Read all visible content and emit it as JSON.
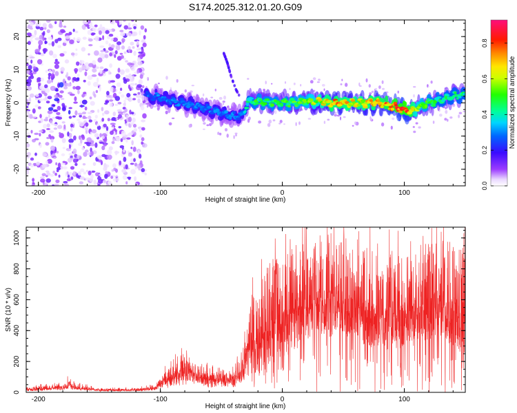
{
  "title": "S174.2025.312.01.20.G09",
  "colors": {
    "snr_line": "#ee2222",
    "frame": "#000000",
    "background": "#ffffff"
  },
  "chart_data": [
    {
      "type": "heatmap",
      "name": "spectrogram",
      "xlabel": "Height of straight line (km)",
      "ylabel": "Frequency (Hz)",
      "xlim": [
        -210,
        150
      ],
      "ylim": [
        -25,
        25
      ],
      "xticks": [
        -200,
        -100,
        0,
        100
      ],
      "xtick_labels": [
        "-200",
        "-100",
        "0",
        "100"
      ],
      "yticks": [
        -20,
        -10,
        0,
        10,
        20
      ],
      "ytick_labels": [
        "-20",
        "-10",
        "0",
        "10",
        "20"
      ],
      "colorbar": {
        "label": "Normalized spectral amplitude",
        "range": [
          0,
          0.93
        ],
        "ticks": [
          0.0,
          0.2,
          0.4,
          0.6,
          0.8
        ],
        "tick_labels": [
          "0.0",
          "0.2",
          "0.4",
          "0.6",
          "0.8"
        ],
        "colormap": "rainbow (violet-blue-cyan-green-yellow-red-magenta)"
      },
      "ridge": {
        "description": "dominant frequency ridge vs height",
        "x": [
          -112,
          -100,
          -90,
          -80,
          -70,
          -60,
          -50,
          -40,
          -32,
          -28,
          -20,
          0,
          20,
          40,
          60,
          80,
          90,
          100,
          105,
          110,
          120,
          130,
          140,
          150
        ],
        "y": [
          2.5,
          1.5,
          0.5,
          0,
          -1,
          -2,
          -3,
          -4,
          -3.5,
          0.5,
          0.2,
          0,
          0.5,
          0,
          0,
          0,
          -1,
          -2,
          -2.5,
          -1.5,
          0,
          1,
          2,
          2.5
        ],
        "amplitude": [
          0.3,
          0.3,
          0.3,
          0.3,
          0.3,
          0.3,
          0.3,
          0.3,
          0.3,
          0.45,
          0.5,
          0.5,
          0.55,
          0.75,
          0.7,
          0.75,
          0.8,
          0.85,
          0.8,
          0.6,
          0.5,
          0.45,
          0.45,
          0.45
        ]
      },
      "side_arc": {
        "description": "faint rising feature near -45 km",
        "x": [
          -48,
          -45,
          -42,
          -38,
          -35
        ],
        "y": [
          15,
          12,
          8,
          4,
          2
        ]
      },
      "noise_region": {
        "x_range": [
          -210,
          -112
        ],
        "description": "scattered noise across full frequency band"
      }
    },
    {
      "type": "line",
      "name": "snr",
      "xlabel": "Height of straight line (km)",
      "ylabel": "SNR (10 * v/v)",
      "xlim": [
        -210,
        150
      ],
      "ylim": [
        0,
        1070
      ],
      "xticks": [
        -200,
        -100,
        0,
        100
      ],
      "xtick_labels": [
        "-200",
        "-100",
        "0",
        "100"
      ],
      "yticks": [
        0,
        200,
        400,
        600,
        800,
        1000
      ],
      "ytick_labels": [
        "0",
        "200",
        "400",
        "600",
        "800",
        "1000"
      ],
      "series": [
        {
          "name": "SNR",
          "envelope_x": [
            -210,
            -180,
            -175,
            -170,
            -150,
            -120,
            -105,
            -100,
            -90,
            -80,
            -70,
            -60,
            -50,
            -40,
            -32,
            -28,
            -22,
            -15,
            -5,
            0,
            10,
            20,
            30,
            40,
            50,
            60,
            70,
            80,
            90,
            100,
            110,
            120,
            130,
            140,
            150
          ],
          "envelope_base": [
            15,
            25,
            40,
            25,
            12,
            12,
            20,
            50,
            80,
            120,
            90,
            60,
            70,
            60,
            120,
            280,
            250,
            300,
            350,
            380,
            420,
            480,
            520,
            520,
            500,
            480,
            440,
            420,
            420,
            420,
            440,
            480,
            500,
            460,
            400
          ],
          "envelope_peak": [
            40,
            60,
            100,
            60,
            30,
            30,
            50,
            120,
            220,
            260,
            200,
            160,
            170,
            150,
            300,
            600,
            700,
            800,
            880,
            850,
            1000,
            980,
            1000,
            1070,
            980,
            920,
            950,
            900,
            920,
            860,
            900,
            970,
            1000,
            1000,
            980
          ]
        }
      ]
    }
  ]
}
